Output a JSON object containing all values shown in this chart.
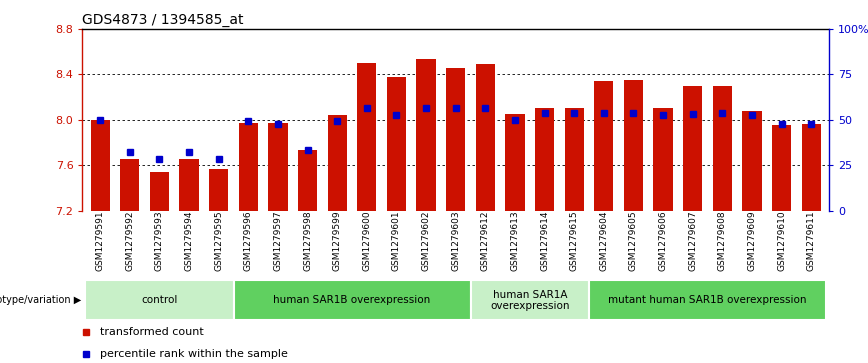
{
  "title": "GDS4873 / 1394585_at",
  "samples": [
    "GSM1279591",
    "GSM1279592",
    "GSM1279593",
    "GSM1279594",
    "GSM1279595",
    "GSM1279596",
    "GSM1279597",
    "GSM1279598",
    "GSM1279599",
    "GSM1279600",
    "GSM1279601",
    "GSM1279602",
    "GSM1279603",
    "GSM1279612",
    "GSM1279613",
    "GSM1279614",
    "GSM1279615",
    "GSM1279604",
    "GSM1279605",
    "GSM1279606",
    "GSM1279607",
    "GSM1279608",
    "GSM1279609",
    "GSM1279610",
    "GSM1279611"
  ],
  "red_values": [
    8.0,
    7.65,
    7.54,
    7.65,
    7.57,
    7.97,
    7.97,
    7.73,
    8.04,
    8.5,
    8.38,
    8.54,
    8.46,
    8.49,
    8.05,
    8.1,
    8.1,
    8.34,
    8.35,
    8.1,
    8.3,
    8.3,
    8.08,
    7.95,
    7.96
  ],
  "blue_values": [
    8.0,
    7.72,
    7.65,
    7.72,
    7.65,
    7.99,
    7.96,
    7.73,
    7.99,
    8.1,
    8.04,
    8.1,
    8.1,
    8.1,
    8.0,
    8.06,
    8.06,
    8.06,
    8.06,
    8.04,
    8.05,
    8.06,
    8.04,
    7.96,
    7.96
  ],
  "groups": [
    {
      "label": "control",
      "start": 0,
      "end": 5,
      "color": "#c8f0c8"
    },
    {
      "label": "human SAR1B overexpression",
      "start": 5,
      "end": 13,
      "color": "#60d060"
    },
    {
      "label": "human SAR1A\noverexpression",
      "start": 13,
      "end": 17,
      "color": "#c8f0c8"
    },
    {
      "label": "mutant human SAR1B overexpression",
      "start": 17,
      "end": 25,
      "color": "#60d060"
    }
  ],
  "ymin": 7.2,
  "ymax": 8.8,
  "yticks": [
    7.2,
    7.6,
    8.0,
    8.4,
    8.8
  ],
  "right_yticks": [
    0,
    25,
    50,
    75,
    100
  ],
  "right_yticklabels": [
    "0",
    "25",
    "50",
    "75",
    "100%"
  ],
  "bar_color": "#cc1100",
  "dot_color": "#0000cc",
  "bar_width": 0.65,
  "title_fontsize": 10,
  "tick_fontsize": 8,
  "sample_fontsize": 6.5,
  "group_fontsize": 7.5,
  "legend_fontsize": 8
}
